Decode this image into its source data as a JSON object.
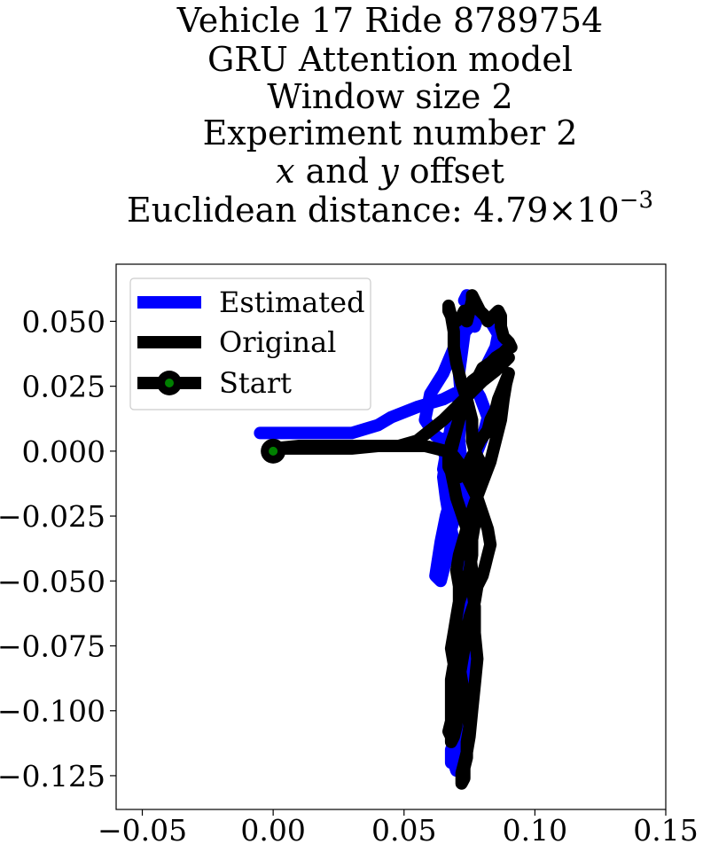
{
  "chart_data": {
    "type": "line",
    "title_lines": [
      "Vehicle 17 Ride 8789754",
      "GRU Attention model",
      "Window size 2",
      "Experiment number 2"
    ],
    "title_offset_line": {
      "x_symbol": "x",
      "and_text": " and ",
      "y_symbol": "y",
      "offset_text": " offset"
    },
    "title_distance_line": {
      "label": "Euclidean distance: ",
      "mantissa": "4.79",
      "times": "×",
      "base": "10",
      "exponent": "−3"
    },
    "xlim": [
      -0.06,
      0.15
    ],
    "ylim": [
      -0.138,
      0.072
    ],
    "xticks": [
      -0.05,
      0.0,
      0.05,
      0.1,
      0.15
    ],
    "xtick_labels": [
      "−0.05",
      "0.00",
      "0.05",
      "0.10",
      "0.15"
    ],
    "yticks": [
      0.05,
      0.025,
      0.0,
      -0.025,
      -0.05,
      -0.075,
      -0.1,
      -0.125
    ],
    "ytick_labels": [
      "0.050",
      "0.025",
      "0.000",
      "−0.025",
      "−0.050",
      "−0.075",
      "−0.100",
      "−0.125"
    ],
    "grid": false,
    "legend_position": "upper-left",
    "series": [
      {
        "name": "Estimated",
        "color": "#0000ff",
        "x": [
          -0.005,
          0.01,
          0.03,
          0.04,
          0.045,
          0.055,
          0.065,
          0.073,
          0.079,
          0.082,
          0.085,
          0.086,
          0.083,
          0.08,
          0.078,
          0.077,
          0.076,
          0.075,
          0.07,
          0.065,
          0.06,
          0.058,
          0.062,
          0.068,
          0.072,
          0.075,
          0.078,
          0.08,
          0.082,
          0.079,
          0.076,
          0.072,
          0.068,
          0.065,
          0.066,
          0.068,
          0.071,
          0.07,
          0.066,
          0.064,
          0.066,
          0.065,
          0.066,
          0.068,
          0.07,
          0.072,
          0.073,
          0.074,
          0.072,
          0.075,
          0.074,
          0.071,
          0.07,
          0.068,
          0.068,
          0.069,
          0.07,
          0.071,
          0.071,
          0.072,
          0.073,
          0.072,
          0.073,
          0.072,
          0.074,
          0.074,
          0.075,
          0.075,
          0.074,
          0.072,
          0.07,
          0.068,
          0.066,
          0.064,
          0.062,
          0.064,
          0.066,
          0.068,
          0.071,
          0.072,
          0.072,
          0.071,
          0.072,
          0.071,
          0.073,
          0.074,
          0.074,
          0.073
        ],
        "y": [
          0.007,
          0.007,
          0.007,
          0.01,
          0.013,
          0.017,
          0.02,
          0.024,
          0.028,
          0.034,
          0.04,
          0.045,
          0.05,
          0.052,
          0.051,
          0.048,
          0.051,
          0.048,
          0.042,
          0.03,
          0.022,
          0.012,
          0.006,
          0.002,
          -0.002,
          -0.004,
          0.0,
          0.005,
          0.013,
          0.021,
          0.026,
          0.022,
          0.01,
          -0.007,
          -0.01,
          -0.012,
          -0.009,
          0.0,
          0.005,
          0.004,
          -0.003,
          -0.01,
          -0.018,
          -0.03,
          -0.04,
          -0.05,
          -0.06,
          -0.068,
          -0.075,
          -0.08,
          -0.09,
          -0.1,
          -0.11,
          -0.115,
          -0.12,
          -0.12,
          -0.123,
          -0.12,
          -0.118,
          -0.11,
          -0.1,
          -0.09,
          -0.08,
          -0.07,
          -0.06,
          -0.05,
          -0.038,
          -0.026,
          -0.018,
          -0.01,
          -0.012,
          -0.018,
          -0.025,
          -0.035,
          -0.048,
          -0.05,
          -0.042,
          -0.03,
          -0.02,
          -0.015,
          -0.005,
          0.005,
          0.018,
          0.03,
          0.045,
          0.055,
          0.06,
          0.058
        ]
      },
      {
        "name": "Original",
        "color": "#000000",
        "x": [
          0.0,
          0.01,
          0.02,
          0.03,
          0.04,
          0.048,
          0.055,
          0.06,
          0.065,
          0.07,
          0.075,
          0.08,
          0.085,
          0.088,
          0.09,
          0.088,
          0.085,
          0.08,
          0.076,
          0.074,
          0.072,
          0.07,
          0.068,
          0.067,
          0.067,
          0.068,
          0.069,
          0.07,
          0.072,
          0.074,
          0.075,
          0.076,
          0.076,
          0.077,
          0.077,
          0.078,
          0.077,
          0.076,
          0.075,
          0.074,
          0.073,
          0.072,
          0.072,
          0.072,
          0.073,
          0.073,
          0.074,
          0.074,
          0.075,
          0.074,
          0.073,
          0.072,
          0.071,
          0.071,
          0.07,
          0.07,
          0.071,
          0.071,
          0.07,
          0.071,
          0.073,
          0.075,
          0.077,
          0.08,
          0.083,
          0.085,
          0.087,
          0.088,
          0.089,
          0.09,
          0.088,
          0.086,
          0.085,
          0.083,
          0.082,
          0.079,
          0.077,
          0.075,
          0.073,
          0.071,
          0.07,
          0.069,
          0.068,
          0.069,
          0.07,
          0.071,
          0.072,
          0.073,
          0.075,
          0.078,
          0.08,
          0.083,
          0.085,
          0.088,
          0.09,
          0.091,
          0.09,
          0.088,
          0.087,
          0.087,
          0.086,
          0.084,
          0.082,
          0.081,
          0.079,
          0.077,
          0.076,
          0.076,
          0.075,
          0.074,
          0.073,
          0.072,
          0.07,
          0.068,
          0.067,
          0.067,
          0.068,
          0.069,
          0.069,
          0.07,
          0.072,
          0.074,
          0.076,
          0.076,
          0.077,
          0.078,
          0.079,
          0.078,
          0.077,
          0.077,
          0.078,
          0.078,
          0.078,
          0.077,
          0.076,
          0.076,
          0.075,
          0.073,
          0.071,
          0.07,
          0.069,
          0.068,
          0.069,
          0.068,
          0.068,
          0.068,
          0.068,
          0.067,
          0.068,
          0.068,
          0.069,
          0.07,
          0.07,
          0.071,
          0.071,
          0.072,
          0.073,
          0.074,
          0.075,
          0.077,
          0.078,
          0.08,
          0.081,
          0.082,
          0.083,
          0.082,
          0.08,
          0.078,
          0.075,
          0.072,
          0.069,
          0.066,
          0.062,
          0.058,
          0.055,
          0.05,
          0.045,
          0.04,
          0.03,
          0.02,
          0.01,
          0.0
        ],
        "y": [
          0.001,
          0.002,
          0.002,
          0.002,
          0.002,
          0.002,
          0.004,
          0.008,
          0.012,
          0.017,
          0.022,
          0.027,
          0.031,
          0.034,
          0.036,
          0.038,
          0.035,
          0.03,
          0.027,
          0.022,
          0.016,
          0.009,
          0.003,
          -0.002,
          -0.006,
          -0.008,
          -0.013,
          -0.018,
          -0.024,
          -0.03,
          -0.038,
          -0.046,
          -0.052,
          -0.06,
          -0.07,
          -0.08,
          -0.09,
          -0.1,
          -0.11,
          -0.116,
          -0.12,
          -0.124,
          -0.127,
          -0.128,
          -0.126,
          -0.122,
          -0.118,
          -0.112,
          -0.106,
          -0.1,
          -0.094,
          -0.088,
          -0.082,
          -0.076,
          -0.07,
          -0.064,
          -0.058,
          -0.052,
          -0.046,
          -0.04,
          -0.033,
          -0.026,
          -0.02,
          -0.012,
          -0.004,
          0.004,
          0.012,
          0.02,
          0.026,
          0.03,
          0.025,
          0.02,
          0.016,
          0.012,
          0.008,
          0.004,
          0.0,
          -0.004,
          -0.008,
          -0.01,
          -0.008,
          -0.004,
          0.0,
          0.004,
          0.008,
          0.012,
          0.016,
          0.02,
          0.024,
          0.028,
          0.032,
          0.034,
          0.036,
          0.038,
          0.04,
          0.04,
          0.042,
          0.044,
          0.048,
          0.052,
          0.054,
          0.052,
          0.05,
          0.052,
          0.054,
          0.058,
          0.06,
          0.058,
          0.054,
          0.05,
          0.054,
          0.052,
          0.05,
          0.052,
          0.054,
          0.056,
          0.052,
          0.046,
          0.04,
          0.034,
          0.026,
          0.02,
          0.012,
          0.004,
          0.0,
          -0.002,
          -0.004,
          -0.006,
          -0.008,
          -0.01,
          -0.014,
          -0.018,
          -0.024,
          -0.028,
          -0.034,
          -0.04,
          -0.046,
          -0.052,
          -0.058,
          -0.064,
          -0.07,
          -0.076,
          -0.082,
          -0.088,
          -0.094,
          -0.1,
          -0.104,
          -0.108,
          -0.11,
          -0.112,
          -0.11,
          -0.106,
          -0.1,
          -0.094,
          -0.088,
          -0.082,
          -0.076,
          -0.07,
          -0.064,
          -0.058,
          -0.052,
          -0.048,
          -0.044,
          -0.04,
          -0.036,
          -0.03,
          -0.024,
          -0.018,
          -0.012,
          -0.006,
          -0.002,
          0.0,
          0.001,
          0.002,
          0.002,
          0.002,
          0.002,
          0.002,
          0.001,
          0.001,
          0.001,
          0.001
        ]
      },
      {
        "name": "Start",
        "color": "#000000",
        "marker_color": "#008000",
        "x": [
          0.0
        ],
        "y": [
          0.0
        ]
      }
    ],
    "legend": [
      "Estimated",
      "Original",
      "Start"
    ]
  }
}
